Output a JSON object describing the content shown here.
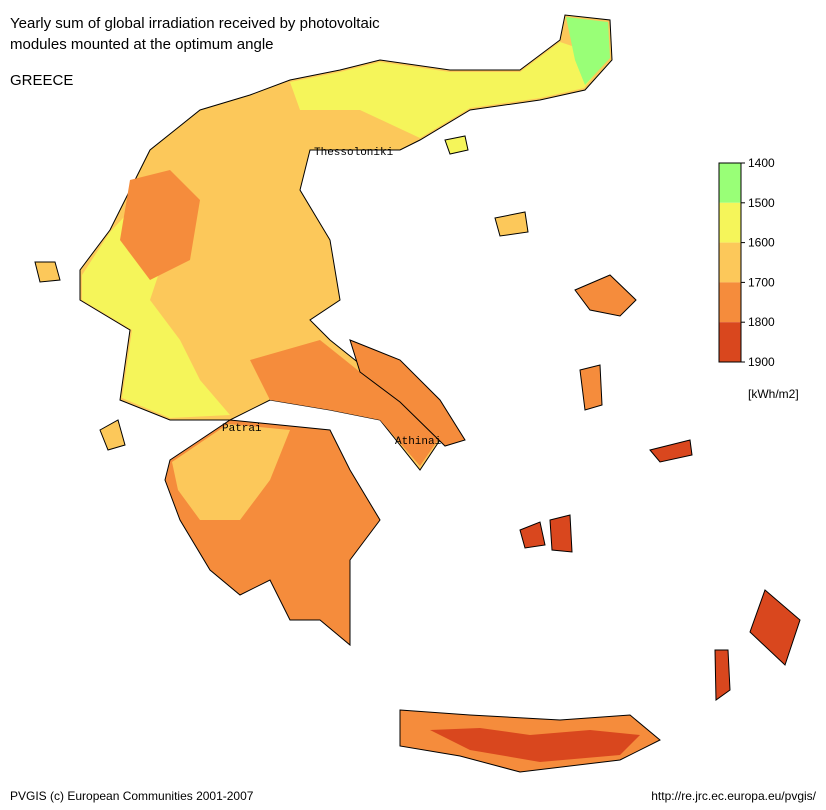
{
  "title": [
    "Yearly sum of global irradiation received by photovoltaic",
    "modules mounted at the optimum angle"
  ],
  "country": "GREECE",
  "cities": [
    {
      "label": "Thessoloniki"
    },
    {
      "label": "Patrai"
    },
    {
      "label": "Athinai"
    }
  ],
  "legend": {
    "ticks": [
      1400,
      1500,
      1600,
      1700,
      1800,
      1900
    ],
    "colors": [
      "#99ff77",
      "#f5f55a",
      "#fcc85a",
      "#f58c3c",
      "#d9471e"
    ],
    "unit": "[kWh/m2]"
  },
  "footer": {
    "credit": "PVGIS (c) European Communities 2001-2007",
    "url": "http://re.jrc.ec.europa.eu/pvgis/"
  }
}
